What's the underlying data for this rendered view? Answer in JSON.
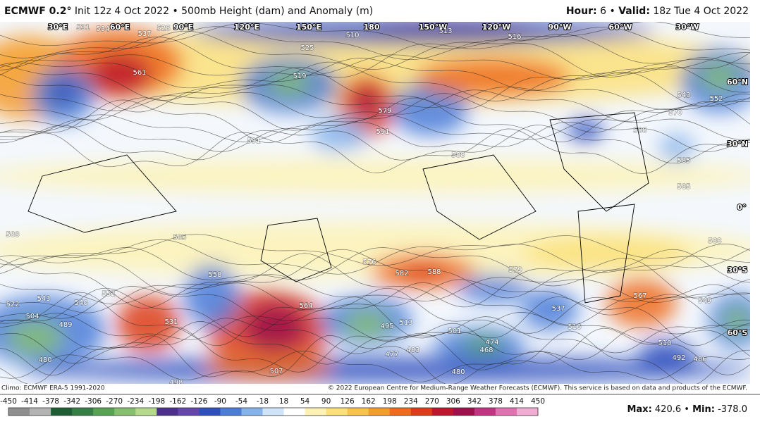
{
  "header": {
    "model": "ECMWF 0.2°",
    "title": "Init 12z 4 Oct 2022 • 500mb Height (dam) and Anomaly (m)",
    "hour_label": "Hour:",
    "hour": "6",
    "separator": "•",
    "valid_label": "Valid:",
    "valid": "18z Tue 4 Oct 2022"
  },
  "map": {
    "grid_labels": [
      "30°E",
      "60°E",
      "90°E",
      "120°E",
      "150°E",
      "180",
      "150°W",
      "120°W",
      "90°W",
      "60°W",
      "30°W",
      "60°N",
      "30°N",
      "0°",
      "30°S",
      "60°S"
    ],
    "contour_labels": [
      "531",
      "534",
      "537",
      "528",
      "561",
      "519",
      "510",
      "525",
      "513",
      "516",
      "579",
      "591",
      "588",
      "591",
      "585",
      "552",
      "543",
      "570",
      "588",
      "585",
      "588",
      "576",
      "582",
      "588",
      "579",
      "558",
      "552",
      "543",
      "540",
      "504",
      "489",
      "531",
      "564",
      "507",
      "498",
      "495",
      "513",
      "501",
      "477",
      "483",
      "474",
      "468",
      "480",
      "537",
      "516",
      "567",
      "549",
      "510",
      "492",
      "486",
      "522",
      "480",
      "585",
      "588"
    ]
  },
  "footer": {
    "climo": "Climo: ECMWF ERA-5 1991-2020",
    "copyright": "© 2022 European Centre for Medium-Range Weather Forecasts (ECMWF). This service is based on data and products of the ECMWF.",
    "colorbar": {
      "ticks": [
        -450,
        -414,
        -378,
        -342,
        -306,
        -270,
        -234,
        -198,
        -162,
        -126,
        -90,
        -54,
        -18,
        18,
        54,
        90,
        126,
        162,
        198,
        234,
        270,
        306,
        342,
        378,
        414,
        450
      ],
      "colors": [
        "#8f8f8f",
        "#b3b3b3",
        "#1e5e34",
        "#357f44",
        "#58a254",
        "#86bf6e",
        "#b5da8c",
        "#4e2f8e",
        "#6446ad",
        "#2f4fbd",
        "#4a7cd8",
        "#86b3ea",
        "#cfe4f8",
        "#ffffff",
        "#fdf2b4",
        "#fbe07a",
        "#f8c24e",
        "#f59c2e",
        "#ee6c1e",
        "#dc3c18",
        "#bd1730",
        "#9e104c",
        "#c23482",
        "#e271b2",
        "#f1acd3"
      ]
    },
    "max_label": "Max:",
    "max": "420.6",
    "min_label": "Min:",
    "min": "-378.0"
  }
}
